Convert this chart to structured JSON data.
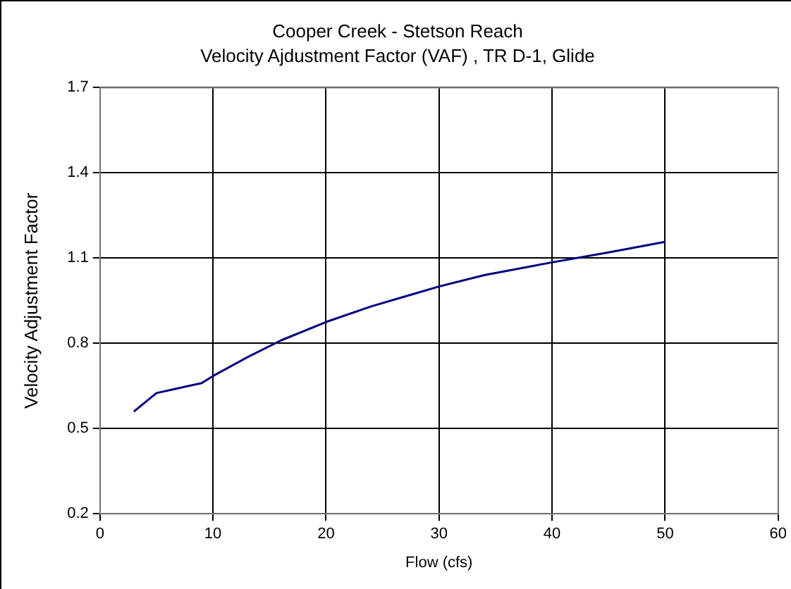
{
  "chart_data": {
    "type": "line",
    "title": "Cooper Creek - Stetson Reach",
    "subtitle": "Velocity Ajdustment Factor (VAF) , TR D-1, Glide",
    "xlabel": "Flow (cfs)",
    "ylabel": "Velocity Adjustment Factor",
    "x": [
      3,
      5,
      9,
      10,
      13,
      16,
      20,
      24,
      27,
      30,
      34,
      40,
      45,
      50
    ],
    "series": [
      {
        "color": "#000080",
        "values": [
          0.56,
          0.625,
          0.66,
          0.685,
          0.75,
          0.81,
          0.875,
          0.93,
          0.965,
          1.0,
          1.04,
          1.085,
          1.12,
          1.157
        ]
      }
    ],
    "xlim": [
      0,
      60
    ],
    "xticks": [
      0,
      10,
      20,
      30,
      40,
      50,
      60
    ],
    "ylim": [
      0.2,
      1.7
    ],
    "yticks": [
      0.2,
      0.5,
      0.8,
      1.1,
      1.4,
      1.7
    ],
    "grid": true,
    "legend": false,
    "marker": "none",
    "line_style": "solid"
  }
}
